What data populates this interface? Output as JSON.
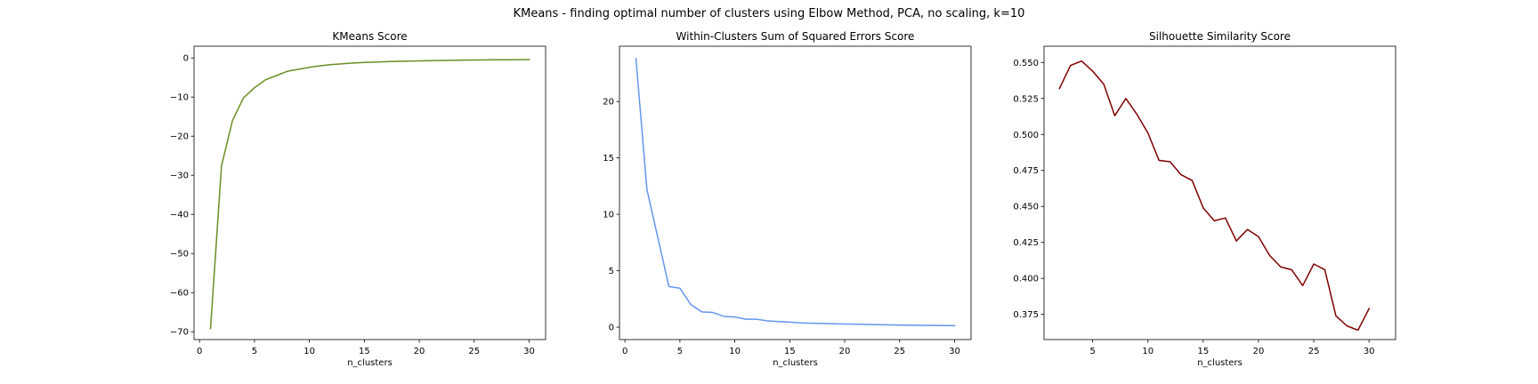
{
  "figure": {
    "suptitle": "KMeans - finding optimal number of clusters using Elbow Method, PCA, no scaling, k=10"
  },
  "chart_data": [
    {
      "type": "line",
      "title": "KMeans Score",
      "xlabel": "n_clusters",
      "ylabel": "",
      "xlim": [
        -0.5,
        31.5
      ],
      "ylim": [
        -72.0,
        3.0
      ],
      "xticks": [
        0,
        5,
        10,
        15,
        20,
        25,
        30
      ],
      "yticks": [
        -70,
        -60,
        -50,
        -40,
        -30,
        -20,
        -10,
        0
      ],
      "grid": false,
      "series": [
        {
          "color": "#6b8e23",
          "x": [
            1,
            2,
            3,
            4,
            5,
            6,
            7,
            8,
            9,
            10,
            11,
            12,
            13,
            14,
            15,
            16,
            17,
            18,
            19,
            20,
            21,
            22,
            23,
            24,
            25,
            26,
            27,
            28,
            29,
            30
          ],
          "y": [
            -69.2,
            -27.6,
            -16.0,
            -10.2,
            -7.6,
            -5.6,
            -4.5,
            -3.4,
            -2.9,
            -2.4,
            -2.0,
            -1.7,
            -1.5,
            -1.3,
            -1.15,
            -1.05,
            -0.95,
            -0.87,
            -0.8,
            -0.75,
            -0.7,
            -0.65,
            -0.6,
            -0.56,
            -0.53,
            -0.5,
            -0.48,
            -0.46,
            -0.44,
            -0.42
          ]
        }
      ]
    },
    {
      "type": "line",
      "title": "Within-Clusters Sum of Squared Errors Score",
      "xlabel": "n_clusters",
      "ylabel": "",
      "xlim": [
        -0.5,
        31.5
      ],
      "ylim": [
        -1.1,
        24.9
      ],
      "xticks": [
        0,
        5,
        10,
        15,
        20,
        25,
        30
      ],
      "yticks": [
        0,
        5,
        10,
        15,
        20
      ],
      "grid": false,
      "series": [
        {
          "color": "#6495ed",
          "x": [
            1,
            2,
            3,
            4,
            5,
            6,
            7,
            8,
            9,
            10,
            11,
            12,
            13,
            14,
            15,
            16,
            17,
            18,
            19,
            20,
            21,
            22,
            23,
            24,
            25,
            26,
            27,
            28,
            29,
            30
          ],
          "y": [
            23.8,
            12.2,
            7.9,
            3.6,
            3.45,
            2.0,
            1.35,
            1.3,
            0.95,
            0.9,
            0.7,
            0.7,
            0.55,
            0.5,
            0.45,
            0.38,
            0.35,
            0.33,
            0.3,
            0.28,
            0.26,
            0.24,
            0.22,
            0.2,
            0.18,
            0.17,
            0.16,
            0.15,
            0.14,
            0.13
          ]
        }
      ]
    },
    {
      "type": "line",
      "title": "Silhouette Similarity Score",
      "xlabel": "n_clusters",
      "ylabel": "",
      "xlim": [
        0.6,
        32.4
      ],
      "ylim": [
        0.3575,
        0.5613
      ],
      "xticks": [
        5,
        10,
        15,
        20,
        25,
        30
      ],
      "yticks": [
        0.375,
        0.4,
        0.425,
        0.45,
        0.475,
        0.5,
        0.525,
        0.55
      ],
      "yticklabels": [
        "0.375",
        "0.400",
        "0.425",
        "0.450",
        "0.475",
        "0.500",
        "0.525",
        "0.550"
      ],
      "grid": false,
      "series": [
        {
          "color": "#800000",
          "x": [
            2,
            3,
            4,
            5,
            6,
            7,
            8,
            9,
            10,
            11,
            12,
            13,
            14,
            15,
            16,
            17,
            18,
            19,
            20,
            21,
            22,
            23,
            24,
            25,
            26,
            27,
            28,
            29,
            30
          ],
          "y": [
            0.532,
            0.548,
            0.551,
            0.544,
            0.535,
            0.513,
            0.525,
            0.514,
            0.501,
            0.482,
            0.481,
            0.472,
            0.468,
            0.449,
            0.44,
            0.442,
            0.426,
            0.434,
            0.429,
            0.416,
            0.408,
            0.406,
            0.395,
            0.41,
            0.406,
            0.374,
            0.367,
            0.364,
            0.379
          ]
        }
      ]
    }
  ]
}
